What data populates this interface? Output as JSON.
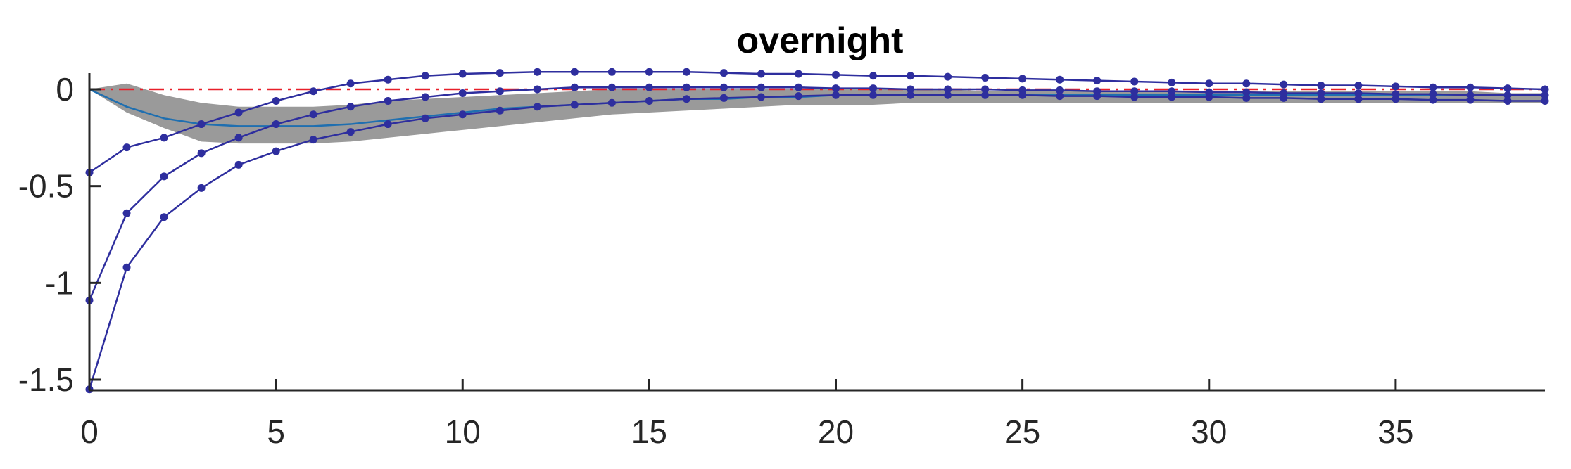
{
  "chart_data": {
    "type": "line",
    "title": "overnight",
    "xlabel": "",
    "ylabel": "",
    "xlim": [
      0,
      39
    ],
    "ylim": [
      -1.55,
      0.1
    ],
    "xticks": [
      0,
      5,
      10,
      15,
      20,
      25,
      30,
      35
    ],
    "yticks": [
      0,
      -0.5,
      -1,
      -1.5
    ],
    "ytick_labels": [
      "0",
      "-0.5",
      "-1",
      "-1.5"
    ],
    "grid": false,
    "legend": "none",
    "zero_line": {
      "y": 0,
      "color": "#e8202a",
      "style": "dash-dot"
    },
    "band": {
      "x": [
        0,
        1,
        2,
        3,
        4,
        5,
        6,
        7,
        8,
        9,
        10,
        11,
        12,
        13,
        14,
        15,
        16,
        17,
        18,
        19,
        20,
        21,
        22,
        23,
        24,
        25,
        26,
        27,
        28,
        29,
        30,
        31,
        32,
        33,
        34,
        35,
        36,
        37,
        38,
        39
      ],
      "upper": [
        0.0,
        0.03,
        -0.03,
        -0.07,
        -0.09,
        -0.09,
        -0.09,
        -0.08,
        -0.06,
        -0.05,
        -0.04,
        -0.03,
        -0.02,
        -0.01,
        0.0,
        0.0,
        0.0,
        0.0,
        0.0,
        0.0,
        0.0,
        0.0,
        0.0,
        0.0,
        -0.01,
        -0.01,
        -0.01,
        -0.01,
        -0.01,
        -0.01,
        -0.01,
        -0.01,
        -0.01,
        -0.01,
        -0.01,
        -0.01,
        -0.01,
        -0.01,
        -0.02,
        -0.02
      ],
      "lower": [
        0.0,
        -0.12,
        -0.2,
        -0.27,
        -0.28,
        -0.28,
        -0.28,
        -0.27,
        -0.25,
        -0.23,
        -0.21,
        -0.19,
        -0.17,
        -0.15,
        -0.13,
        -0.12,
        -0.11,
        -0.1,
        -0.09,
        -0.08,
        -0.08,
        -0.08,
        -0.07,
        -0.07,
        -0.07,
        -0.07,
        -0.07,
        -0.07,
        -0.07,
        -0.07,
        -0.07,
        -0.07,
        -0.07,
        -0.07,
        -0.07,
        -0.07,
        -0.07,
        -0.07,
        -0.07,
        -0.07
      ],
      "color": "#9a9a9a"
    },
    "median": {
      "x": [
        0,
        1,
        2,
        3,
        4,
        5,
        6,
        7,
        8,
        9,
        10,
        11,
        12,
        13,
        14,
        15,
        16,
        17,
        18,
        19,
        20,
        21,
        22,
        23,
        24,
        25,
        26,
        27,
        28,
        29,
        30,
        31,
        32,
        33,
        34,
        35,
        36,
        37,
        38,
        39
      ],
      "y": [
        0.0,
        -0.09,
        -0.15,
        -0.18,
        -0.19,
        -0.19,
        -0.19,
        -0.18,
        -0.16,
        -0.14,
        -0.12,
        -0.1,
        -0.09,
        -0.08,
        -0.07,
        -0.06,
        -0.05,
        -0.05,
        -0.04,
        -0.04,
        -0.03,
        -0.03,
        -0.03,
        -0.03,
        -0.03,
        -0.03,
        -0.03,
        -0.03,
        -0.03,
        -0.03,
        -0.03,
        -0.03,
        -0.03,
        -0.03,
        -0.03,
        -0.03,
        -0.03,
        -0.03,
        -0.03,
        -0.03
      ],
      "color": "#1f6fb0"
    },
    "series": [
      {
        "x": [
          0,
          1,
          2,
          3,
          4,
          5,
          6,
          7,
          8,
          9,
          10,
          11,
          12,
          13,
          14,
          15,
          16,
          17,
          18,
          19,
          20,
          21,
          22,
          23,
          24,
          25,
          26,
          27,
          28,
          29,
          30,
          31,
          32,
          33,
          34,
          35,
          36,
          37,
          38,
          39
        ],
        "values": [
          -0.43,
          -0.3,
          -0.25,
          -0.18,
          -0.12,
          -0.06,
          -0.01,
          0.03,
          0.05,
          0.07,
          0.08,
          0.085,
          0.09,
          0.09,
          0.09,
          0.09,
          0.09,
          0.085,
          0.08,
          0.08,
          0.075,
          0.07,
          0.07,
          0.065,
          0.06,
          0.055,
          0.05,
          0.045,
          0.04,
          0.035,
          0.03,
          0.03,
          0.025,
          0.02,
          0.02,
          0.015,
          0.01,
          0.01,
          0.005,
          0.0
        ],
        "color": "#2e2e9e"
      },
      {
        "x": [
          0,
          1,
          2,
          3,
          4,
          5,
          6,
          7,
          8,
          9,
          10,
          11,
          12,
          13,
          14,
          15,
          16,
          17,
          18,
          19,
          20,
          21,
          22,
          23,
          24,
          25,
          26,
          27,
          28,
          29,
          30,
          31,
          32,
          33,
          34,
          35,
          36,
          37,
          38,
          39
        ],
        "values": [
          -1.09,
          -0.64,
          -0.45,
          -0.33,
          -0.25,
          -0.18,
          -0.13,
          -0.09,
          -0.06,
          -0.04,
          -0.02,
          -0.01,
          0.0,
          0.01,
          0.01,
          0.01,
          0.01,
          0.01,
          0.01,
          0.01,
          0.005,
          0.005,
          0.0,
          0.0,
          0.0,
          -0.005,
          -0.005,
          -0.01,
          -0.01,
          -0.01,
          -0.015,
          -0.015,
          -0.02,
          -0.02,
          -0.02,
          -0.025,
          -0.025,
          -0.03,
          -0.03,
          -0.03
        ],
        "color": "#2e2e9e"
      },
      {
        "x": [
          0,
          1,
          2,
          3,
          4,
          5,
          6,
          7,
          8,
          9,
          10,
          11,
          12,
          13,
          14,
          15,
          16,
          17,
          18,
          19,
          20,
          21,
          22,
          23,
          24,
          25,
          26,
          27,
          28,
          29,
          30,
          31,
          32,
          33,
          34,
          35,
          36,
          37,
          38,
          39
        ],
        "values": [
          -1.55,
          -0.92,
          -0.66,
          -0.51,
          -0.39,
          -0.32,
          -0.26,
          -0.22,
          -0.18,
          -0.15,
          -0.13,
          -0.11,
          -0.09,
          -0.08,
          -0.07,
          -0.06,
          -0.05,
          -0.045,
          -0.04,
          -0.035,
          -0.03,
          -0.03,
          -0.03,
          -0.03,
          -0.03,
          -0.03,
          -0.035,
          -0.035,
          -0.04,
          -0.04,
          -0.04,
          -0.045,
          -0.045,
          -0.05,
          -0.05,
          -0.05,
          -0.055,
          -0.055,
          -0.06,
          -0.06
        ],
        "color": "#2e2e9e"
      }
    ]
  }
}
